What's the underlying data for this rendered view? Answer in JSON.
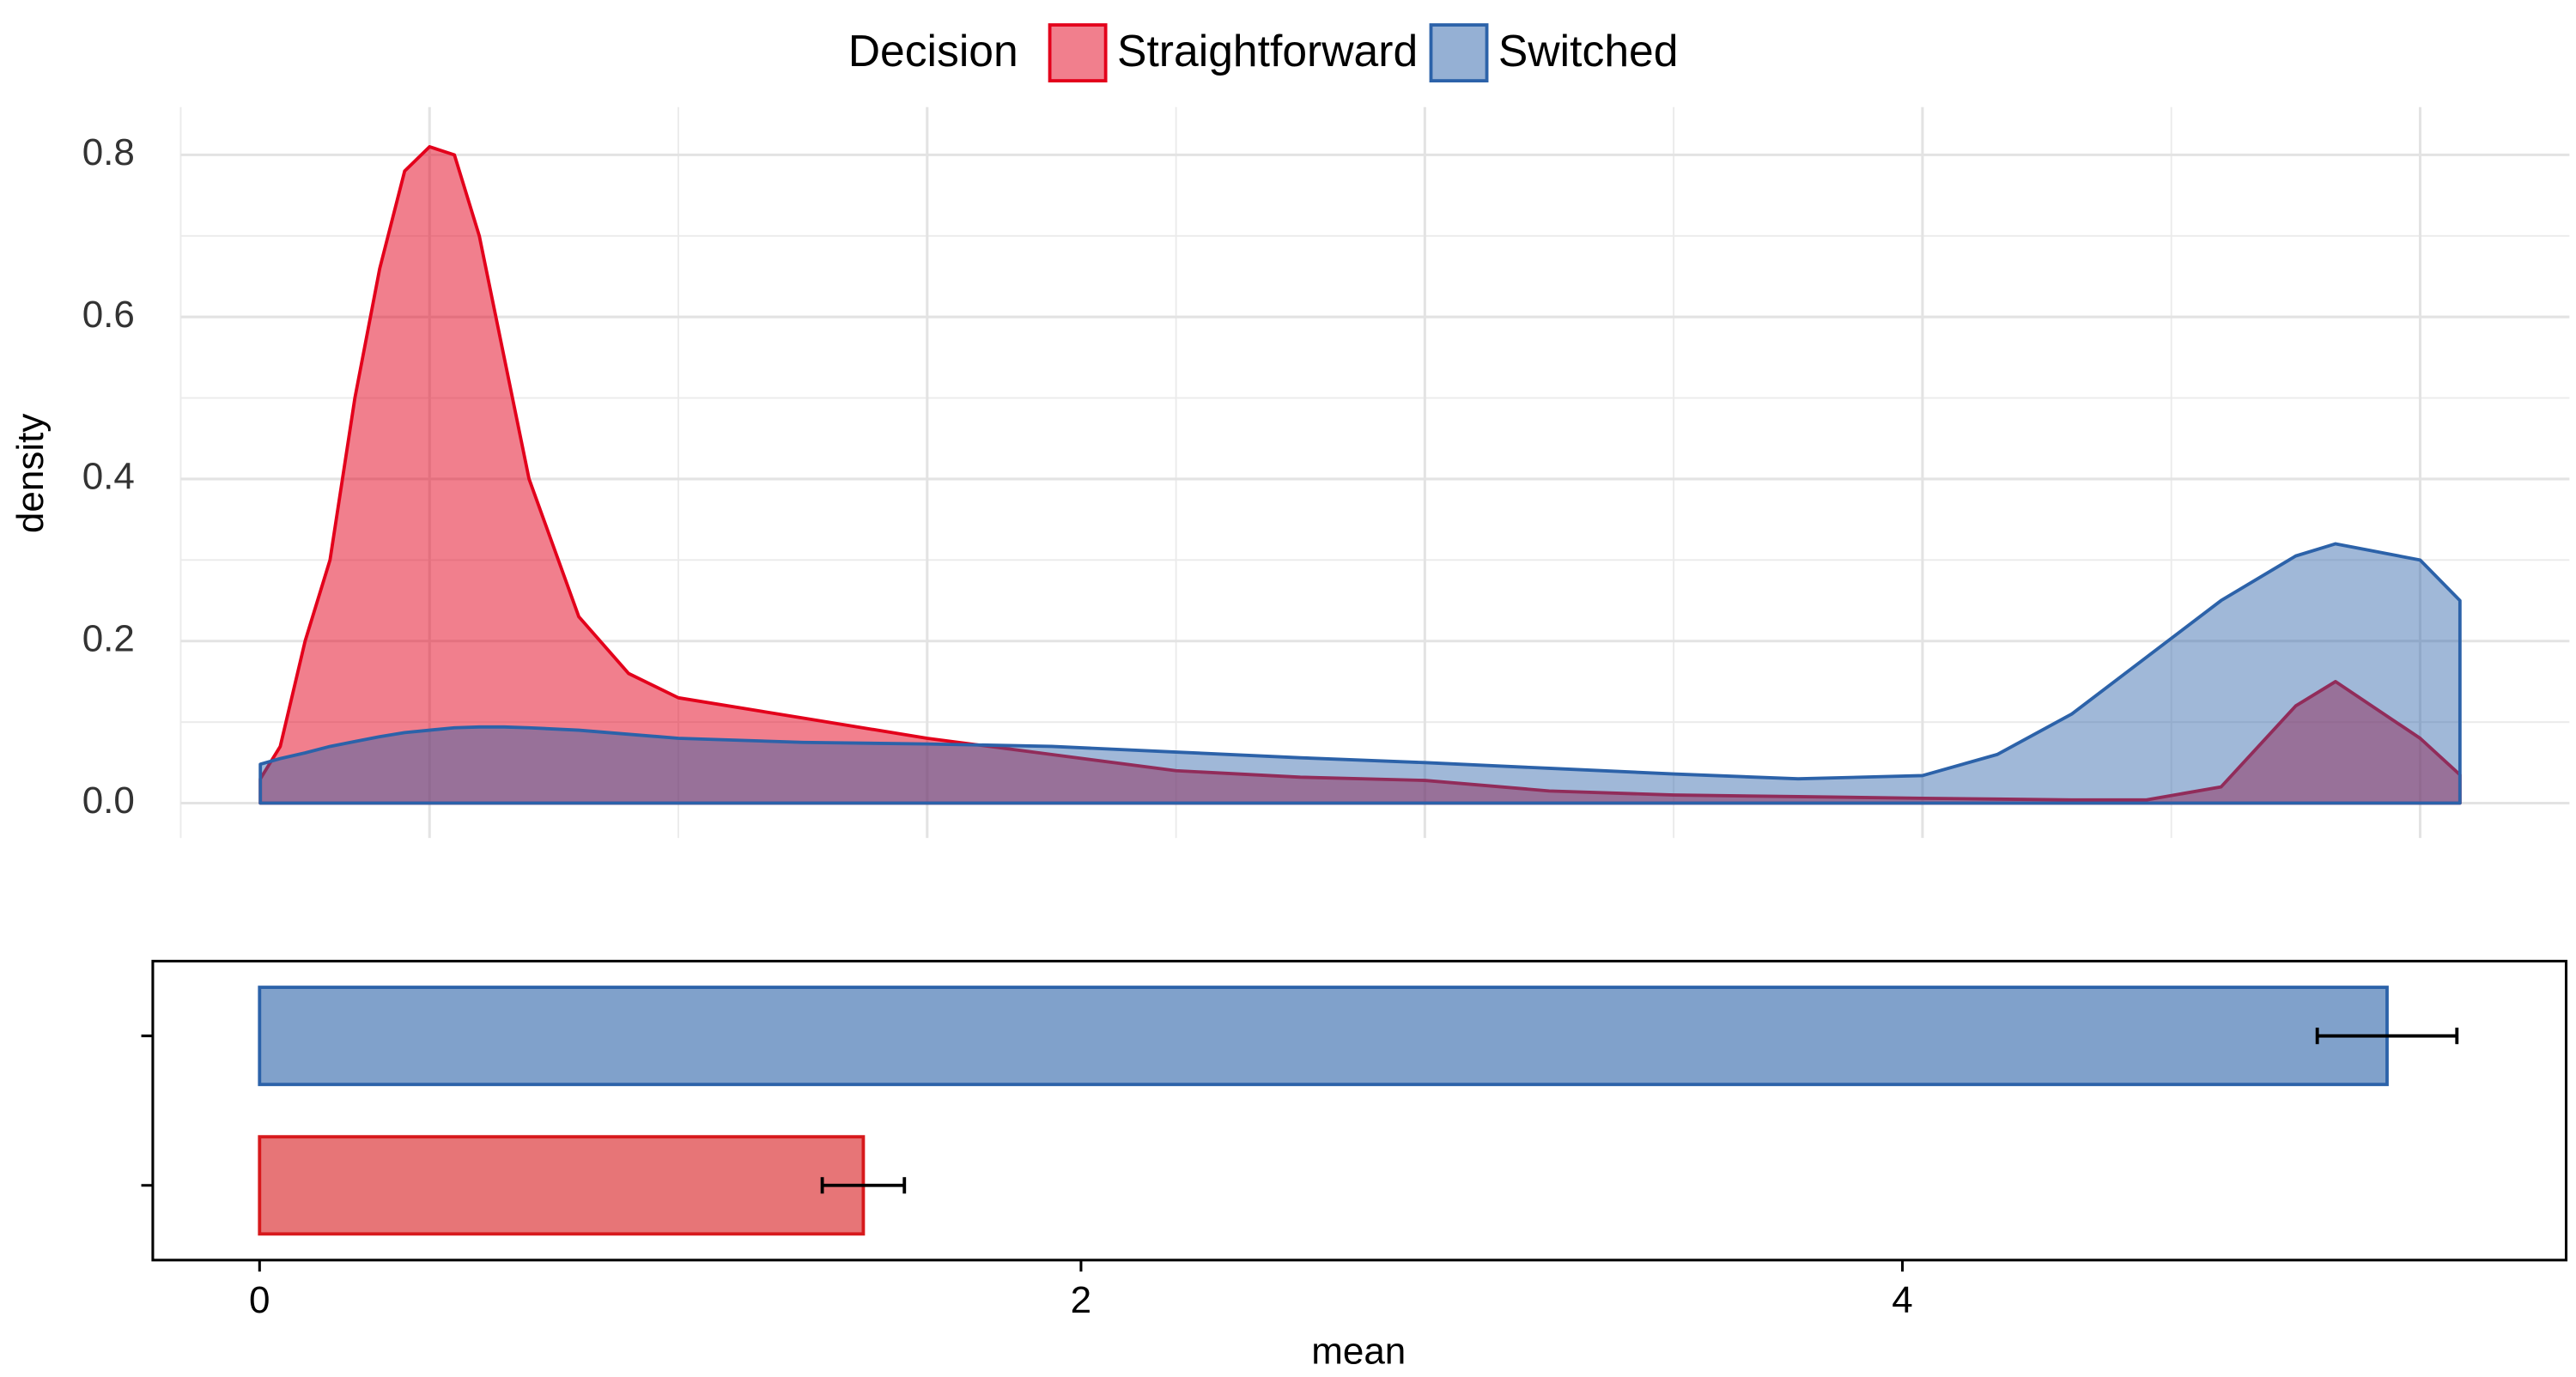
{
  "chart_data": [
    {
      "type": "area",
      "ylabel": "density",
      "legend_title": "Decision",
      "legend": "top",
      "grid": true,
      "xlim": [
        0.5,
        5.3
      ],
      "xticks": [
        1,
        2,
        3,
        4,
        5
      ],
      "minor_xticks": [
        0.5,
        1.5,
        2.5,
        3.5,
        4.5
      ],
      "ylim": [
        -0.043,
        0.859
      ],
      "yticks": [
        {
          "value": 0,
          "label": "0.0"
        },
        {
          "value": 0.2,
          "label": "0.2"
        },
        {
          "value": 0.4,
          "label": "0.4"
        },
        {
          "value": 0.6,
          "label": "0.6"
        },
        {
          "value": 0.8,
          "label": "0.8"
        }
      ],
      "minor_yticks": [
        0.1,
        0.3,
        0.5,
        0.7
      ],
      "x": [
        0.66,
        0.7,
        0.75,
        0.8,
        0.85,
        0.9,
        0.95,
        1.0,
        1.05,
        1.1,
        1.15,
        1.2,
        1.3,
        1.4,
        1.5,
        1.75,
        2,
        2.25,
        2.5,
        2.75,
        3,
        3.25,
        3.5,
        3.75,
        4,
        4.15,
        4.3,
        4.45,
        4.6,
        4.75,
        4.83,
        5.0,
        5.08
      ],
      "series": [
        {
          "name": "Straightforward",
          "color": "#e3001b",
          "values": [
            0.03,
            0.07,
            0.2,
            0.3,
            0.5,
            0.66,
            0.78,
            0.81,
            0.8,
            0.7,
            0.55,
            0.4,
            0.23,
            0.16,
            0.13,
            0.105,
            0.08,
            0.06,
            0.04,
            0.032,
            0.028,
            0.015,
            0.01,
            0.008,
            0.006,
            0.005,
            0.004,
            0.004,
            0.02,
            0.12,
            0.15,
            0.08,
            0.035
          ]
        },
        {
          "name": "Switched",
          "color": "#2c62a9",
          "values": [
            0.048,
            0.055,
            0.062,
            0.07,
            0.076,
            0.082,
            0.087,
            0.09,
            0.093,
            0.094,
            0.094,
            0.093,
            0.09,
            0.085,
            0.08,
            0.075,
            0.073,
            0.07,
            0.063,
            0.056,
            0.05,
            0.043,
            0.036,
            0.03,
            0.034,
            0.06,
            0.11,
            0.18,
            0.25,
            0.305,
            0.32,
            0.3,
            0.25
          ]
        }
      ]
    },
    {
      "type": "hbar",
      "xlabel": "mean",
      "xlim": [
        -0.26,
        5.616
      ],
      "xticks": [
        0,
        2,
        4
      ],
      "categories": [
        null,
        null
      ],
      "values": [
        1.47,
        5.18
      ],
      "errors": [
        0.1,
        0.17
      ],
      "colors": [
        "#d7191c",
        "#2c62a9"
      ]
    }
  ]
}
